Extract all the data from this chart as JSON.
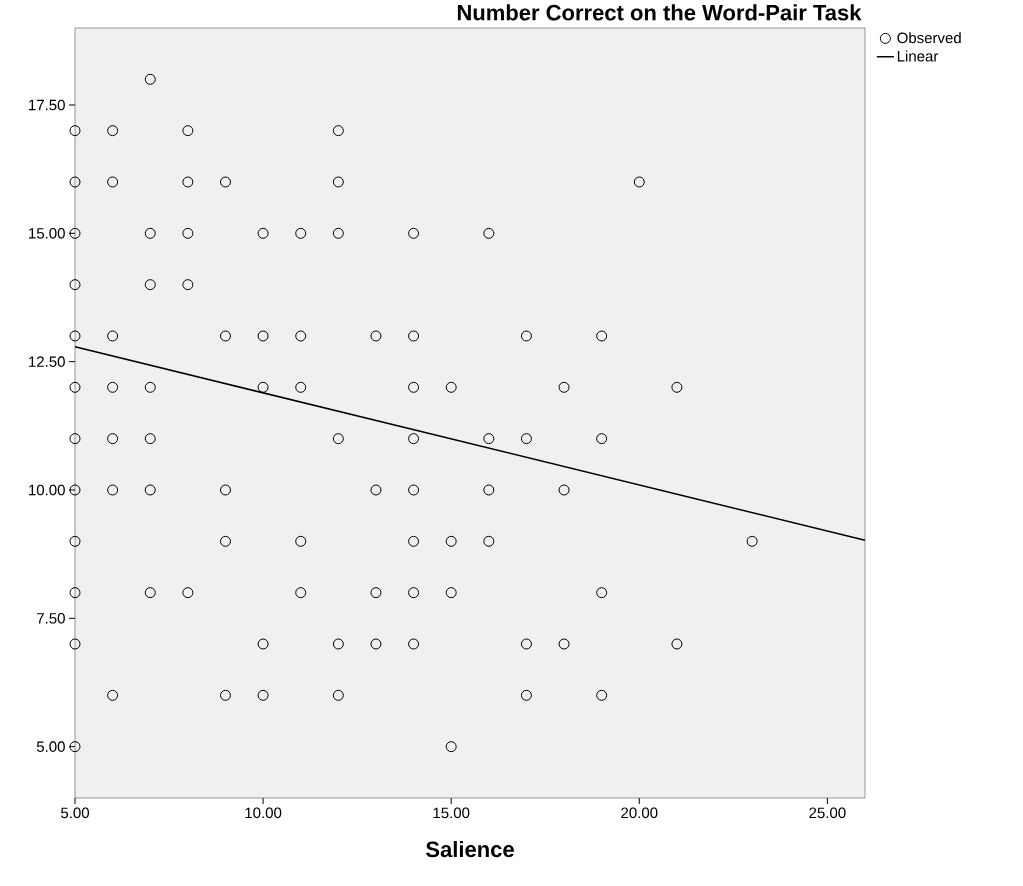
{
  "chart_data": {
    "type": "scatter",
    "title": "Number Correct on the Word-Pair Task",
    "xlabel": "Salience",
    "xlim": [
      5,
      26
    ],
    "ylim": [
      4,
      19
    ],
    "xticks": [
      {
        "value": 5,
        "label": "5.00"
      },
      {
        "value": 10,
        "label": "10.00"
      },
      {
        "value": 15,
        "label": "15.00"
      },
      {
        "value": 20,
        "label": "20.00"
      },
      {
        "value": 25,
        "label": "25.00"
      }
    ],
    "yticks": [
      {
        "value": 5,
        "label": "5.00"
      },
      {
        "value": 7.5,
        "label": "7.50"
      },
      {
        "value": 10,
        "label": "10.00"
      },
      {
        "value": 12.5,
        "label": "12.50"
      },
      {
        "value": 15,
        "label": "15.00"
      },
      {
        "value": 17.5,
        "label": "17.50"
      }
    ],
    "grid": false,
    "legend": "top right",
    "series": [
      {
        "name": "Observed",
        "color": "#000000",
        "marker": "circle",
        "x": [
          7,
          5,
          6,
          8,
          12,
          5,
          6,
          8,
          9,
          12,
          20,
          5,
          7,
          8,
          10,
          11,
          12,
          14,
          16,
          5,
          7,
          8,
          5,
          6,
          9,
          10,
          11,
          13,
          14,
          17,
          19,
          5,
          6,
          7,
          10,
          11,
          14,
          15,
          18,
          21,
          5,
          6,
          7,
          12,
          14,
          16,
          17,
          19,
          5,
          6,
          7,
          9,
          13,
          14,
          16,
          18,
          5,
          9,
          11,
          14,
          15,
          16,
          23,
          5,
          7,
          8,
          11,
          13,
          14,
          15,
          19,
          5,
          10,
          12,
          13,
          14,
          17,
          18,
          21,
          6,
          9,
          10,
          12,
          17,
          19,
          5,
          15
        ],
        "values": [
          18,
          17,
          17,
          17,
          17,
          16,
          16,
          16,
          16,
          16,
          16,
          15,
          15,
          15,
          15,
          15,
          15,
          15,
          15,
          14,
          14,
          14,
          13,
          13,
          13,
          13,
          13,
          13,
          13,
          13,
          13,
          12,
          12,
          12,
          12,
          12,
          12,
          12,
          12,
          12,
          11,
          11,
          11,
          11,
          11,
          11,
          11,
          11,
          10,
          10,
          10,
          10,
          10,
          10,
          10,
          10,
          9,
          9,
          9,
          9,
          9,
          9,
          9,
          8,
          8,
          8,
          8,
          8,
          8,
          8,
          8,
          7,
          7,
          7,
          7,
          7,
          7,
          7,
          7,
          6,
          6,
          6,
          6,
          6,
          6,
          5,
          5
        ]
      },
      {
        "name": "Linear",
        "type": "line",
        "marker": "none",
        "color": "#000000",
        "x": [
          5,
          26
        ],
        "values": [
          12.79,
          9.02
        ]
      }
    ]
  }
}
